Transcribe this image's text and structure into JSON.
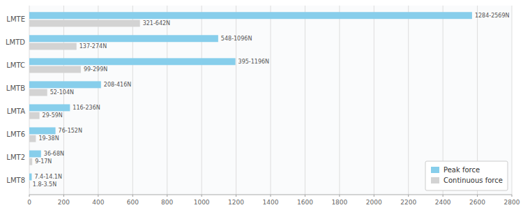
{
  "chart_data": {
    "type": "bar",
    "orientation": "horizontal",
    "categories": [
      "LMT8",
      "LMT2",
      "LMT6",
      "LMTA",
      "LMTB",
      "LMTC",
      "LMTD",
      "LMTE"
    ],
    "series": [
      {
        "name": "Peak force",
        "color": "#87CEEB",
        "values": [
          14.1,
          68,
          152,
          236,
          416,
          1196,
          1096,
          2569
        ],
        "value_labels": [
          "7.4-14.1N",
          "36-68N",
          "76-152N",
          "116-236N",
          "208-416N",
          "395-1196N",
          "548-1096N",
          "1284-2569N"
        ]
      },
      {
        "name": "Continuous force",
        "color": "#D3D3D3",
        "values": [
          3.5,
          17,
          38,
          59,
          104,
          299,
          274,
          642
        ],
        "value_labels": [
          "1.8-3.5N",
          "9-17N",
          "19-38N",
          "29-59N",
          "52-104N",
          "99-299N",
          "137-274N",
          "321-642N"
        ]
      }
    ],
    "xlim": [
      0,
      2800
    ],
    "xticks": [
      0,
      200,
      400,
      600,
      800,
      1000,
      1200,
      1400,
      1600,
      1800,
      2000,
      2200,
      2400,
      2600,
      2800
    ],
    "grid": true,
    "legend": "lower right",
    "data_labels": true
  }
}
